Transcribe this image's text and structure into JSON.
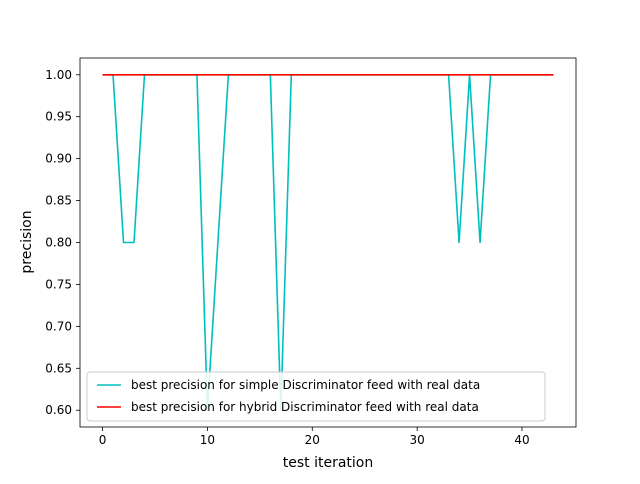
{
  "chart_data": {
    "type": "line",
    "title": "",
    "xlabel": "test iteration",
    "ylabel": "precision",
    "xlim": [
      -2.15,
      45.15
    ],
    "ylim": [
      0.58,
      1.02
    ],
    "x_ticks": [
      0,
      10,
      20,
      30,
      40
    ],
    "y_ticks": [
      0.6,
      0.65,
      0.7,
      0.75,
      0.8,
      0.85,
      0.9,
      0.95,
      1.0
    ],
    "x_tick_labels": [
      "0",
      "10",
      "20",
      "30",
      "40"
    ],
    "y_tick_labels": [
      "0.60",
      "0.65",
      "0.70",
      "0.75",
      "0.80",
      "0.85",
      "0.90",
      "0.95",
      "1.00"
    ],
    "grid": false,
    "legend_position": "lower-left",
    "series": [
      {
        "name": "best precision for simple Discriminator feed with real data",
        "color": "#00bfbf",
        "x": [
          0,
          1,
          2,
          3,
          4,
          5,
          6,
          7,
          8,
          9,
          10,
          11,
          12,
          13,
          14,
          15,
          16,
          17,
          18,
          19,
          20,
          21,
          22,
          23,
          24,
          25,
          26,
          27,
          28,
          29,
          30,
          31,
          32,
          33,
          34,
          35,
          36,
          37,
          38,
          39,
          40,
          41,
          42,
          43
        ],
        "y": [
          1.0,
          1.0,
          0.8,
          0.8,
          1.0,
          1.0,
          1.0,
          1.0,
          1.0,
          1.0,
          0.6,
          0.8,
          1.0,
          1.0,
          1.0,
          1.0,
          1.0,
          0.6,
          1.0,
          1.0,
          1.0,
          1.0,
          1.0,
          1.0,
          1.0,
          1.0,
          1.0,
          1.0,
          1.0,
          1.0,
          1.0,
          1.0,
          1.0,
          1.0,
          0.8,
          1.0,
          0.8,
          1.0,
          1.0,
          1.0,
          1.0,
          1.0,
          1.0,
          1.0
        ]
      },
      {
        "name": "best precision for hybrid Discriminator feed with real data",
        "color": "#ff0000",
        "x": [
          0,
          1,
          2,
          3,
          4,
          5,
          6,
          7,
          8,
          9,
          10,
          11,
          12,
          13,
          14,
          15,
          16,
          17,
          18,
          19,
          20,
          21,
          22,
          23,
          24,
          25,
          26,
          27,
          28,
          29,
          30,
          31,
          32,
          33,
          34,
          35,
          36,
          37,
          38,
          39,
          40,
          41,
          42,
          43
        ],
        "y": [
          1.0,
          1.0,
          1.0,
          1.0,
          1.0,
          1.0,
          1.0,
          1.0,
          1.0,
          1.0,
          1.0,
          1.0,
          1.0,
          1.0,
          1.0,
          1.0,
          1.0,
          1.0,
          1.0,
          1.0,
          1.0,
          1.0,
          1.0,
          1.0,
          1.0,
          1.0,
          1.0,
          1.0,
          1.0,
          1.0,
          1.0,
          1.0,
          1.0,
          1.0,
          1.0,
          1.0,
          1.0,
          1.0,
          1.0,
          1.0,
          1.0,
          1.0,
          1.0,
          1.0
        ]
      }
    ]
  }
}
